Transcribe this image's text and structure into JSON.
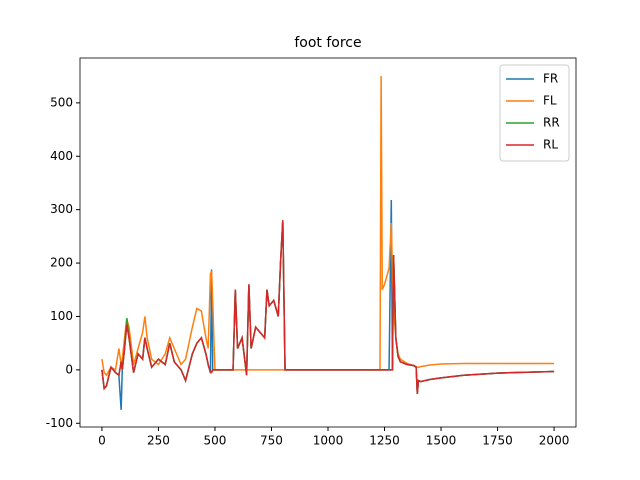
{
  "chart_data": {
    "type": "line",
    "title": "foot force",
    "x": [
      0,
      10,
      20,
      40,
      60,
      75,
      85,
      90,
      100,
      110,
      120,
      140,
      160,
      180,
      190,
      200,
      220,
      250,
      280,
      300,
      320,
      350,
      370,
      400,
      420,
      440,
      460,
      470,
      480,
      485,
      490,
      495,
      500,
      550,
      580,
      590,
      600,
      620,
      640,
      650,
      660,
      680,
      700,
      720,
      730,
      740,
      760,
      780,
      790,
      800,
      810,
      850,
      1000,
      1200,
      1230,
      1235,
      1240,
      1250,
      1270,
      1280,
      1285,
      1290,
      1300,
      1310,
      1320,
      1350,
      1380,
      1390,
      1395,
      1400,
      1410,
      1450,
      1500,
      1600,
      1750,
      2000
    ],
    "series": [
      {
        "name": "FR",
        "color": "#1f77b4",
        "values": [
          0,
          -35,
          -30,
          5,
          -5,
          -10,
          -75,
          0,
          40,
          85,
          60,
          -5,
          30,
          20,
          60,
          40,
          5,
          20,
          10,
          50,
          15,
          0,
          -20,
          30,
          50,
          60,
          30,
          10,
          -5,
          188,
          0,
          0,
          0,
          0,
          0,
          150,
          40,
          60,
          -10,
          160,
          40,
          80,
          70,
          60,
          150,
          120,
          130,
          100,
          200,
          280,
          0,
          0,
          0,
          0,
          0,
          0,
          0,
          0,
          0,
          318,
          0,
          215,
          60,
          25,
          15,
          10,
          8,
          5,
          -45,
          -20,
          -22,
          -18,
          -15,
          -10,
          -6,
          -3
        ]
      },
      {
        "name": "FL",
        "color": "#ff7f0e",
        "values": [
          20,
          -5,
          -10,
          5,
          0,
          40,
          10,
          20,
          60,
          95,
          80,
          10,
          40,
          70,
          100,
          60,
          20,
          10,
          30,
          60,
          40,
          10,
          20,
          80,
          115,
          110,
          60,
          40,
          180,
          185,
          130,
          60,
          0,
          0,
          0,
          0,
          0,
          0,
          0,
          0,
          0,
          0,
          0,
          0,
          0,
          0,
          0,
          0,
          0,
          0,
          0,
          0,
          0,
          0,
          0,
          550,
          150,
          160,
          190,
          275,
          180,
          120,
          60,
          30,
          20,
          12,
          8,
          6,
          5,
          5,
          6,
          9,
          11,
          12,
          12,
          12
        ]
      },
      {
        "name": "RR",
        "color": "#2ca02c",
        "values": [
          0,
          -35,
          -30,
          5,
          -5,
          -10,
          15,
          0,
          40,
          97,
          60,
          -5,
          30,
          20,
          60,
          40,
          5,
          20,
          10,
          50,
          15,
          0,
          -20,
          30,
          50,
          60,
          30,
          10,
          -5,
          -5,
          0,
          0,
          0,
          0,
          0,
          150,
          40,
          60,
          -10,
          160,
          40,
          80,
          70,
          60,
          150,
          120,
          130,
          100,
          200,
          280,
          0,
          0,
          0,
          0,
          0,
          0,
          0,
          0,
          0,
          0,
          0,
          215,
          60,
          25,
          15,
          10,
          8,
          5,
          -45,
          -20,
          -22,
          -18,
          -15,
          -10,
          -6,
          -3
        ]
      },
      {
        "name": "RL",
        "color": "#d62728",
        "values": [
          0,
          -35,
          -30,
          5,
          -5,
          -10,
          15,
          0,
          40,
          85,
          60,
          -5,
          30,
          20,
          60,
          40,
          5,
          20,
          10,
          50,
          15,
          0,
          -20,
          30,
          50,
          60,
          30,
          10,
          -5,
          -5,
          0,
          0,
          0,
          0,
          0,
          150,
          40,
          60,
          -10,
          160,
          40,
          80,
          70,
          60,
          150,
          120,
          130,
          100,
          200,
          280,
          0,
          0,
          0,
          0,
          0,
          0,
          0,
          0,
          0,
          0,
          0,
          215,
          60,
          25,
          15,
          10,
          8,
          5,
          -45,
          -20,
          -22,
          -18,
          -15,
          -10,
          -6,
          -3
        ]
      }
    ],
    "xlim": [
      -97,
      2097
    ],
    "xticks": [
      0,
      250,
      500,
      750,
      1000,
      1250,
      1500,
      1750,
      2000
    ],
    "ylim": [
      -107,
      584
    ],
    "yticks": [
      -100,
      0,
      100,
      200,
      300,
      400,
      500
    ],
    "legend": "upper right"
  }
}
